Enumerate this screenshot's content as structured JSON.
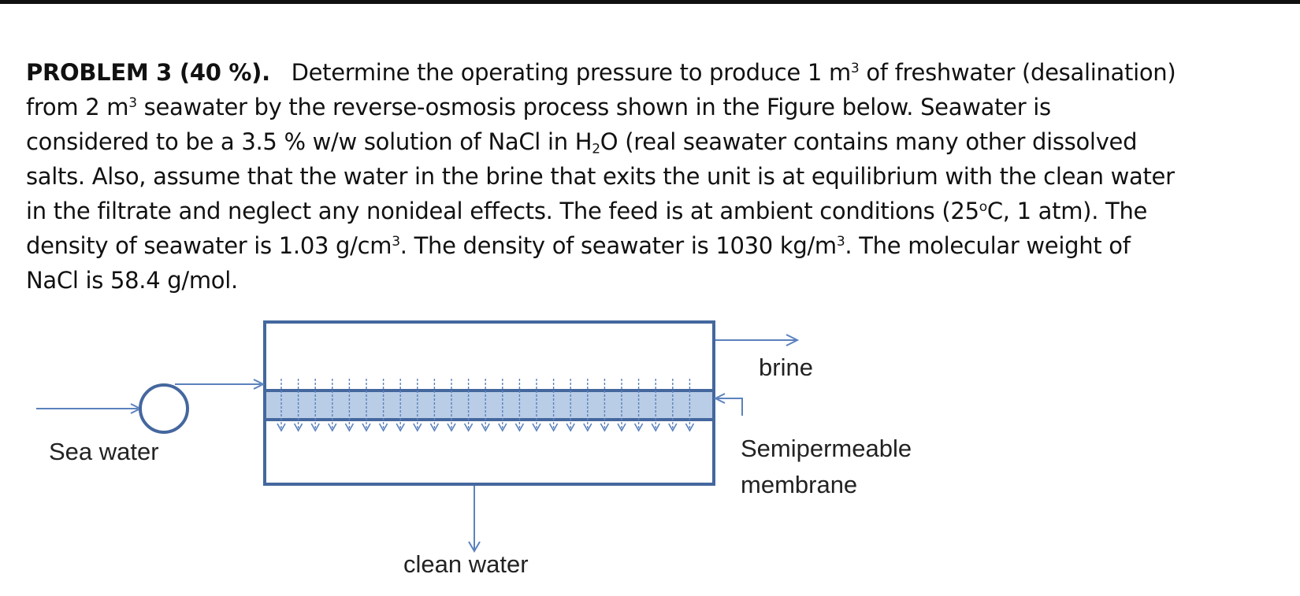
{
  "problem": {
    "heading": "PROBLEM 3 (40 %).",
    "line1": {
      "a": "Determine the operating pressure to produce 1 m",
      "sup": "3",
      "b": " of freshwater (desalination)"
    },
    "line2": {
      "a": "from 2 m",
      "sup": "3",
      "b": " seawater by the reverse-osmosis process shown in the Figure below. Seawater is"
    },
    "line3": {
      "a": "considered to be a 3.5 % w/w solution of NaCl in H",
      "sub": "2",
      "b": "O (real seawater contains many other dissolved"
    },
    "line4": "salts. Also, assume that the water in the brine that exits the unit is at equilibrium with the clean water",
    "line5": {
      "a": "in the filtrate and neglect any nonideal effects. The feed is at ambient conditions (25",
      "sup": "o",
      "b": "C, 1 atm). The"
    },
    "line6": {
      "a": "density of seawater is 1.03 g/cm",
      "sup1": "3",
      "b": ". The density of seawater is 1030 kg/m",
      "sup2": "3",
      "c": ". The molecular weight of"
    },
    "line7": "NaCl is 58.4 g/mol."
  },
  "figure": {
    "sea_water_label": "Sea water",
    "brine_label": "brine",
    "membrane_label_1": "Semipermeable",
    "membrane_label_2": "membrane",
    "clean_water_label": "clean water",
    "colors": {
      "line": "#44679e",
      "membrane_fill": "#b9cde6",
      "arrow": "#5b82bd"
    }
  }
}
